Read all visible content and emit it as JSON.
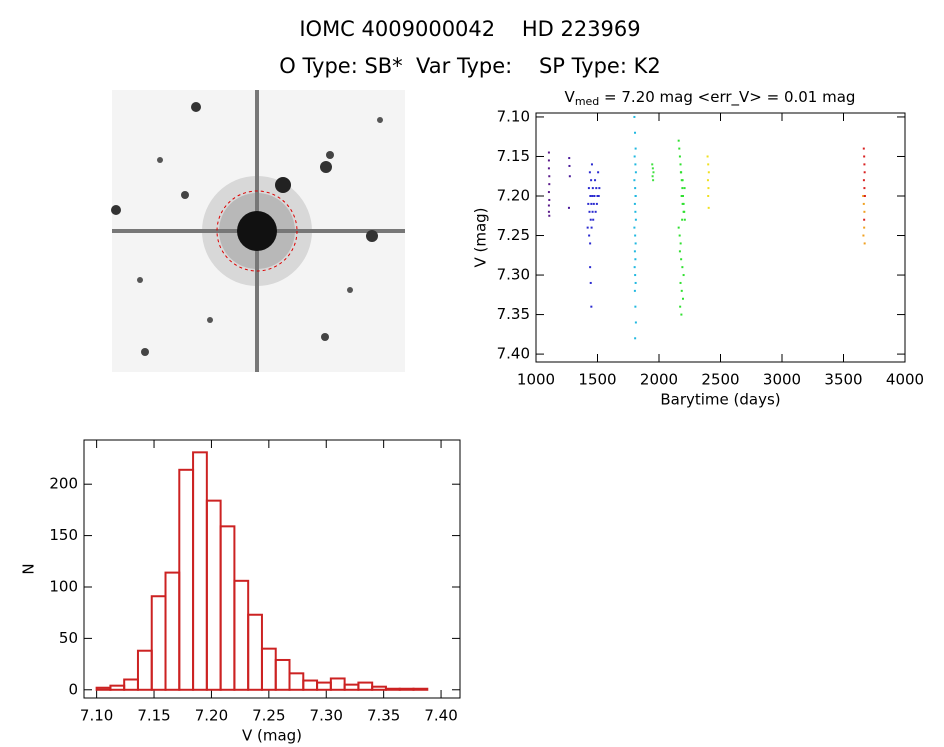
{
  "header": {
    "title": "IOMC 4009000042    HD 223969",
    "subtitle": "O Type: SB*  Var Type:    SP Type: K2"
  },
  "chart_data": [
    {
      "type": "scatter",
      "title": "V",
      "title_subscript": "med",
      "title_rest": " = 7.20 mag <err_V> = 0.01 mag",
      "x_label": "Barytime (days)",
      "y_label": "V (mag)",
      "xlim": [
        1000,
        4000
      ],
      "xticks": [
        1000,
        1500,
        2000,
        2500,
        3000,
        3500,
        4000
      ],
      "ylim": [
        7.41,
        7.095
      ],
      "yticks": [
        {
          "value": 7.1,
          "label": "7.10"
        },
        7.15,
        {
          "value": 7.2,
          "label": "7.20"
        },
        7.25,
        {
          "value": 7.3,
          "label": "7.30"
        },
        7.35,
        {
          "value": 7.4,
          "label": "7.40"
        }
      ],
      "series": [
        {
          "color": "#5a1a8a",
          "x": [
            1105,
            1105,
            1105,
            1108,
            1108,
            1105,
            1108,
            1105,
            1105,
            1108
          ],
          "values": [
            7.145,
            7.155,
            7.165,
            7.175,
            7.185,
            7.195,
            7.205,
            7.212,
            7.22,
            7.225
          ]
        },
        {
          "color": "#4a1a9a",
          "x": [
            1270,
            1272,
            1275,
            1268
          ],
          "values": [
            7.152,
            7.162,
            7.175,
            7.215
          ]
        },
        {
          "color": "#2a2ad0",
          "x": [
            1420,
            1425,
            1430,
            1432,
            1435,
            1438,
            1440,
            1442,
            1445,
            1448,
            1450,
            1452,
            1455,
            1458,
            1460,
            1462,
            1465,
            1470,
            1475,
            1480,
            1485,
            1490,
            1495,
            1500,
            1505,
            1510,
            1515,
            1440,
            1445,
            1450
          ],
          "values": [
            7.24,
            7.21,
            7.19,
            7.25,
            7.22,
            7.17,
            7.26,
            7.2,
            7.23,
            7.18,
            7.21,
            7.24,
            7.16,
            7.2,
            7.22,
            7.19,
            7.23,
            7.21,
            7.2,
            7.18,
            7.22,
            7.19,
            7.21,
            7.2,
            7.17,
            7.2,
            7.19,
            7.29,
            7.31,
            7.34
          ]
        },
        {
          "color": "#20b8e0",
          "x": [
            1800,
            1805,
            1810,
            1802,
            1808,
            1812,
            1800,
            1806,
            1810,
            1804,
            1808,
            1812,
            1800,
            1806,
            1810,
            1804,
            1808,
            1802,
            1806,
            1810,
            1804,
            1808,
            1812,
            1806,
            1810
          ],
          "values": [
            7.1,
            7.12,
            7.14,
            7.15,
            7.16,
            7.17,
            7.18,
            7.19,
            7.2,
            7.21,
            7.22,
            7.23,
            7.24,
            7.25,
            7.26,
            7.27,
            7.28,
            7.29,
            7.3,
            7.31,
            7.32,
            7.34,
            7.36,
            7.38,
            7.2
          ]
        },
        {
          "color": "#40e040",
          "x": [
            1945,
            1950,
            1955,
            1948,
            1952
          ],
          "values": [
            7.16,
            7.165,
            7.17,
            7.175,
            7.18
          ]
        },
        {
          "color": "#30e030",
          "x": [
            2160,
            2165,
            2170,
            2175,
            2180,
            2185,
            2190,
            2195,
            2200,
            2205,
            2210,
            2160,
            2168,
            2176,
            2184,
            2192,
            2200,
            2208,
            2170,
            2180,
            2190,
            2200,
            2175,
            2185,
            2195,
            2172,
            2182,
            2192,
            2178,
            2188
          ],
          "values": [
            7.13,
            7.14,
            7.15,
            7.16,
            7.17,
            7.18,
            7.19,
            7.2,
            7.21,
            7.22,
            7.23,
            7.24,
            7.25,
            7.26,
            7.2,
            7.18,
            7.22,
            7.19,
            7.27,
            7.28,
            7.29,
            7.3,
            7.31,
            7.32,
            7.33,
            7.34,
            7.35,
            7.21,
            7.17,
            7.23
          ]
        },
        {
          "color": "#f0e020",
          "x": [
            2395,
            2400,
            2405,
            2398,
            2402,
            2400,
            2404
          ],
          "values": [
            7.15,
            7.16,
            7.17,
            7.18,
            7.19,
            7.2,
            7.215
          ]
        },
        {
          "color": "#f0a020",
          "x": [
            3660,
            3665,
            3670,
            3668,
            3662,
            3672
          ],
          "values": [
            7.2,
            7.21,
            7.22,
            7.24,
            7.25,
            7.26
          ]
        },
        {
          "color": "#d82020",
          "x": [
            3665,
            3668,
            3670,
            3672,
            3666,
            3670,
            3674,
            3668
          ],
          "values": [
            7.14,
            7.15,
            7.16,
            7.17,
            7.18,
            7.19,
            7.2,
            7.23
          ]
        }
      ]
    },
    {
      "type": "histogram",
      "x_label": "V (mag)",
      "y_label": "N",
      "color": "#cc2222",
      "bins": [
        7.1,
        7.112,
        7.124,
        7.136,
        7.148,
        7.16,
        7.172,
        7.184,
        7.196,
        7.208,
        7.22,
        7.232,
        7.244,
        7.256,
        7.268,
        7.28,
        7.292,
        7.304,
        7.316,
        7.328,
        7.34,
        7.352,
        7.364,
        7.376,
        7.388,
        7.4
      ],
      "values": [
        2,
        4,
        10,
        38,
        91,
        114,
        214,
        231,
        184,
        159,
        106,
        73,
        40,
        29,
        16,
        9,
        7,
        11,
        5,
        7,
        3,
        1,
        1,
        1,
        0
      ],
      "xlim": [
        7.089,
        7.4165
      ],
      "xticks": [
        {
          "value": 7.1,
          "label": "7.10"
        },
        7.15,
        {
          "value": 7.2,
          "label": "7.20"
        },
        7.25,
        {
          "value": 7.3,
          "label": "7.30"
        },
        7.35,
        {
          "value": 7.4,
          "label": "7.40"
        }
      ],
      "ylim": [
        -8,
        243
      ],
      "yticks": [
        0,
        50,
        100,
        150,
        200
      ]
    }
  ]
}
